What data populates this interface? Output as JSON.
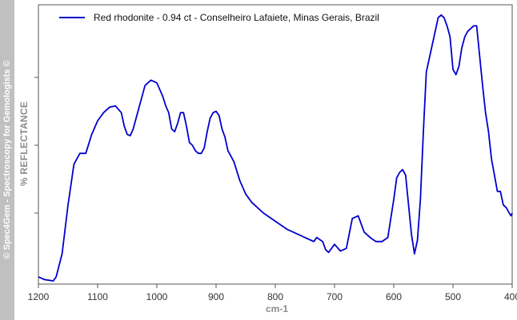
{
  "watermark": "© Spec4Gem - Spectroscopy for Gemologists ©",
  "chart_data": {
    "type": "line",
    "xlabel": "cm-1",
    "ylabel": "% REFLECTANCE",
    "xlim": [
      1200,
      400
    ],
    "ylim": [
      0,
      1
    ],
    "x_reversed": true,
    "y_ticks_labeled": false,
    "y_ticks": [
      0.25,
      0.5,
      0.75
    ],
    "x_ticks": [
      1200,
      1100,
      1000,
      900,
      800,
      700,
      600,
      500,
      400
    ],
    "grid": false,
    "legend_position": "top-left",
    "series": [
      {
        "name": "Red rhodonite - 0.94 ct - Conselheiro Lafaiete, Minas Gerais, Brazil",
        "color": "#0000cc",
        "x": [
          1200,
          1190,
          1175,
          1170,
          1160,
          1150,
          1140,
          1130,
          1120,
          1110,
          1100,
          1090,
          1080,
          1070,
          1060,
          1055,
          1050,
          1045,
          1040,
          1035,
          1030,
          1025,
          1020,
          1010,
          1000,
          990,
          985,
          980,
          975,
          970,
          965,
          960,
          955,
          950,
          945,
          940,
          935,
          930,
          925,
          920,
          915,
          910,
          905,
          900,
          895,
          890,
          885,
          880,
          870,
          860,
          850,
          840,
          820,
          800,
          780,
          760,
          740,
          735,
          730,
          720,
          715,
          710,
          700,
          690,
          680,
          670,
          660,
          650,
          640,
          630,
          620,
          610,
          600,
          595,
          590,
          585,
          580,
          570,
          565,
          560,
          555,
          550,
          545,
          540,
          535,
          530,
          525,
          520,
          515,
          510,
          505,
          500,
          495,
          490,
          485,
          480,
          475,
          470,
          465,
          460,
          455,
          450,
          445,
          440,
          435,
          430,
          425,
          420,
          415,
          410,
          405,
          402,
          400
        ],
        "y": [
          0.015,
          0.005,
          0.0,
          0.015,
          0.1,
          0.28,
          0.43,
          0.47,
          0.47,
          0.54,
          0.59,
          0.62,
          0.64,
          0.645,
          0.62,
          0.57,
          0.54,
          0.535,
          0.56,
          0.6,
          0.64,
          0.68,
          0.72,
          0.74,
          0.73,
          0.68,
          0.645,
          0.62,
          0.56,
          0.55,
          0.58,
          0.62,
          0.62,
          0.57,
          0.51,
          0.5,
          0.48,
          0.47,
          0.47,
          0.49,
          0.55,
          0.6,
          0.62,
          0.625,
          0.61,
          0.56,
          0.53,
          0.48,
          0.44,
          0.37,
          0.32,
          0.29,
          0.25,
          0.22,
          0.19,
          0.17,
          0.15,
          0.145,
          0.16,
          0.145,
          0.115,
          0.105,
          0.135,
          0.11,
          0.12,
          0.23,
          0.24,
          0.18,
          0.16,
          0.145,
          0.145,
          0.16,
          0.3,
          0.38,
          0.4,
          0.41,
          0.39,
          0.17,
          0.1,
          0.15,
          0.3,
          0.55,
          0.77,
          0.82,
          0.87,
          0.92,
          0.97,
          0.98,
          0.97,
          0.94,
          0.9,
          0.78,
          0.76,
          0.79,
          0.86,
          0.9,
          0.92,
          0.93,
          0.94,
          0.94,
          0.83,
          0.72,
          0.62,
          0.55,
          0.45,
          0.39,
          0.33,
          0.33,
          0.28,
          0.27,
          0.25,
          0.24,
          0.25
        ]
      }
    ]
  }
}
